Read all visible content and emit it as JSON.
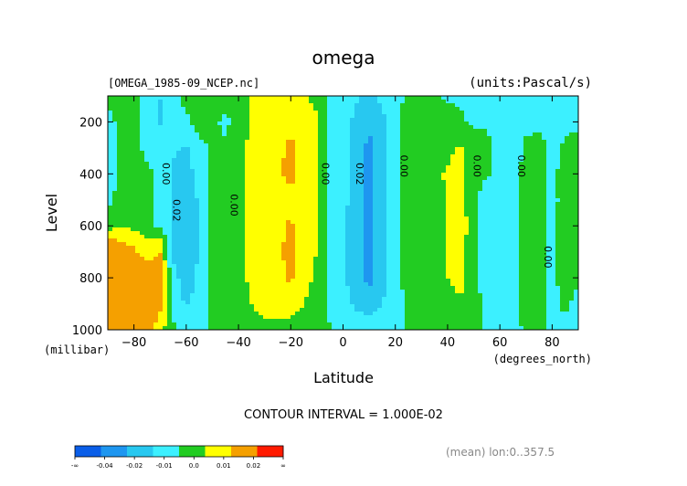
{
  "chart_data": {
    "type": "heatmap",
    "title": "omega",
    "source_file": "[OMEGA_1985-09_NCEP.nc]",
    "units": "(units:Pascal/s)",
    "xlabel": "Latitude",
    "xunits": "(degrees_north)",
    "ylabel": "Level",
    "yunits": "(millibar)",
    "xlim": [
      -90,
      90
    ],
    "ylim": [
      1000,
      100
    ],
    "x_ticks": [
      -80,
      -60,
      -40,
      -20,
      0,
      20,
      40,
      60,
      80
    ],
    "y_ticks": [
      200,
      400,
      600,
      800,
      1000
    ],
    "contour_interval_text": "CONTOUR INTERVAL = 1.000E-02",
    "contour_labels": [
      {
        "text": "0.00",
        "lat": -69,
        "lev": 400
      },
      {
        "text": "0.02",
        "lat": -65,
        "lev": 540
      },
      {
        "text": "0.00",
        "lat": -43,
        "lev": 520
      },
      {
        "text": "0.00",
        "lat": -8,
        "lev": 400
      },
      {
        "text": "0.02",
        "lat": 5,
        "lev": 400
      },
      {
        "text": "0.00",
        "lat": 22,
        "lev": 370
      },
      {
        "text": "0.00",
        "lat": 50,
        "lev": 370
      },
      {
        "text": "0.00",
        "lat": 67,
        "lev": 370
      },
      {
        "text": "0.00",
        "lat": 77,
        "lev": 720
      }
    ],
    "colorbar": {
      "labels": [
        "-∞",
        "-0.04",
        "-0.02",
        "-0.01",
        "0.0",
        "0.01",
        "0.02",
        "∞"
      ],
      "colors": [
        "#0a5ee8",
        "#1e96f0",
        "#28c8f0",
        "#3cf0ff",
        "#22cc22",
        "#ffff00",
        "#f5a000",
        "#ff1a00"
      ]
    },
    "footnote": "(mean) lon:0..357.5",
    "field": {
      "x": [
        -90,
        -85,
        -80,
        -75,
        -70,
        -65,
        -60,
        -55,
        -50,
        -45,
        -40,
        -35,
        -30,
        -25,
        -20,
        -15,
        -10,
        -5,
        0,
        5,
        10,
        15,
        20,
        25,
        30,
        35,
        40,
        45,
        50,
        55,
        60,
        65,
        70,
        75,
        80,
        85,
        90
      ],
      "y": [
        100,
        200,
        300,
        400,
        500,
        600,
        700,
        800,
        900,
        1000
      ],
      "z": [
        [
          0.003,
          0.007,
          0.003,
          -0.003,
          -0.01,
          -0.003,
          0.003,
          0.008,
          0.007,
          0.004,
          0.006,
          0.011,
          0.012,
          0.012,
          0.011,
          0.011,
          0.006,
          -0.003,
          -0.006,
          -0.009,
          -0.012,
          -0.008,
          -0.003,
          0.002,
          0.003,
          0.001,
          -0.001,
          -0.002,
          -0.004,
          -0.003,
          -0.006,
          -0.004,
          -0.002,
          -0.003,
          -0.004,
          -0.003,
          -0.002
        ],
        [
          -0.004,
          0.003,
          0.002,
          -0.003,
          -0.011,
          -0.006,
          -0.002,
          0.004,
          0.002,
          -0.002,
          0.004,
          0.011,
          0.013,
          0.016,
          0.018,
          0.016,
          0.012,
          -0.003,
          -0.006,
          -0.012,
          -0.018,
          -0.013,
          -0.003,
          0.004,
          0.006,
          0.004,
          0.003,
          0.002,
          -0.002,
          -0.001,
          -0.003,
          -0.004,
          -0.003,
          -0.003,
          -0.004,
          -0.003,
          -0.002
        ],
        [
          -0.012,
          0.004,
          0.004,
          -0.003,
          -0.005,
          -0.009,
          -0.011,
          -0.003,
          0.002,
          0.001,
          0.006,
          0.013,
          0.017,
          0.018,
          0.022,
          0.018,
          0.012,
          -0.003,
          -0.006,
          -0.014,
          -0.023,
          -0.014,
          -0.003,
          0.005,
          0.007,
          0.007,
          0.008,
          0.011,
          0.004,
          0.002,
          -0.003,
          -0.004,
          0.002,
          0.004,
          -0.003,
          0.002,
          0.004
        ],
        [
          -0.011,
          0.005,
          0.006,
          0.003,
          -0.003,
          -0.011,
          -0.013,
          -0.008,
          0.003,
          0.003,
          0.005,
          0.013,
          0.018,
          0.019,
          0.022,
          0.017,
          0.012,
          -0.002,
          -0.006,
          -0.013,
          -0.024,
          -0.015,
          -0.003,
          0.007,
          0.006,
          0.008,
          0.011,
          0.013,
          0.004,
          0.002,
          -0.002,
          -0.003,
          0.002,
          0.004,
          -0.002,
          0.003,
          0.005
        ],
        [
          -0.004,
          0.006,
          0.007,
          0.002,
          -0.004,
          -0.012,
          -0.015,
          -0.009,
          0.003,
          0.004,
          0.006,
          0.014,
          0.018,
          0.018,
          0.018,
          0.016,
          0.012,
          -0.002,
          -0.007,
          -0.015,
          -0.024,
          -0.015,
          -0.003,
          0.006,
          0.006,
          0.007,
          0.011,
          0.014,
          0.004,
          -0.008,
          -0.004,
          -0.002,
          0.003,
          0.004,
          -0.003,
          0.004,
          0.005
        ],
        [
          0.006,
          0.008,
          0.008,
          0.004,
          -0.002,
          -0.013,
          -0.016,
          -0.01,
          0.003,
          0.004,
          0.007,
          0.014,
          0.016,
          0.018,
          0.021,
          0.016,
          0.011,
          -0.001,
          -0.008,
          -0.016,
          -0.023,
          -0.016,
          -0.003,
          0.004,
          0.005,
          0.006,
          0.011,
          0.015,
          0.004,
          -0.009,
          -0.003,
          -0.002,
          0.003,
          0.004,
          -0.002,
          0.004,
          0.004
        ],
        [
          0.034,
          0.028,
          0.022,
          0.015,
          0.021,
          -0.012,
          -0.017,
          -0.009,
          0.003,
          0.005,
          0.008,
          0.013,
          0.016,
          0.018,
          0.023,
          0.015,
          0.01,
          -0.001,
          -0.009,
          -0.017,
          -0.021,
          -0.014,
          -0.003,
          0.004,
          0.005,
          0.006,
          0.011,
          0.014,
          0.004,
          -0.008,
          -0.002,
          -0.002,
          0.003,
          0.004,
          -0.002,
          0.004,
          0.003
        ],
        [
          0.045,
          0.042,
          0.037,
          0.028,
          0.024,
          -0.007,
          -0.015,
          -0.008,
          0.002,
          0.003,
          0.007,
          0.012,
          0.016,
          0.017,
          0.022,
          0.013,
          0.008,
          -0.001,
          -0.008,
          -0.017,
          -0.023,
          -0.016,
          -0.003,
          0.003,
          0.004,
          0.005,
          0.01,
          0.013,
          0.004,
          -0.006,
          -0.002,
          -0.002,
          0.003,
          0.004,
          -0.002,
          0.003,
          0.002
        ],
        [
          0.05,
          0.047,
          0.04,
          0.029,
          0.024,
          -0.004,
          -0.011,
          -0.006,
          0.002,
          0.004,
          0.007,
          0.01,
          0.013,
          0.013,
          0.013,
          0.01,
          0.007,
          -0.001,
          -0.006,
          -0.012,
          -0.014,
          -0.01,
          -0.003,
          0.002,
          0.003,
          0.004,
          0.006,
          0.009,
          0.004,
          -0.003,
          -0.001,
          -0.002,
          0.002,
          0.003,
          -0.002,
          0.002,
          -0.003
        ],
        [
          0.05,
          0.045,
          0.038,
          0.025,
          0.014,
          0.002,
          -0.003,
          -0.003,
          0.002,
          0.003,
          0.005,
          0.007,
          0.008,
          0.008,
          0.007,
          0.006,
          0.005,
          0.0,
          -0.002,
          -0.004,
          -0.005,
          -0.004,
          -0.002,
          0.001,
          0.002,
          0.002,
          0.003,
          0.004,
          0.003,
          -0.001,
          -0.001,
          -0.002,
          0.001,
          0.002,
          -0.002,
          -0.002,
          -0.008
        ]
      ]
    }
  }
}
